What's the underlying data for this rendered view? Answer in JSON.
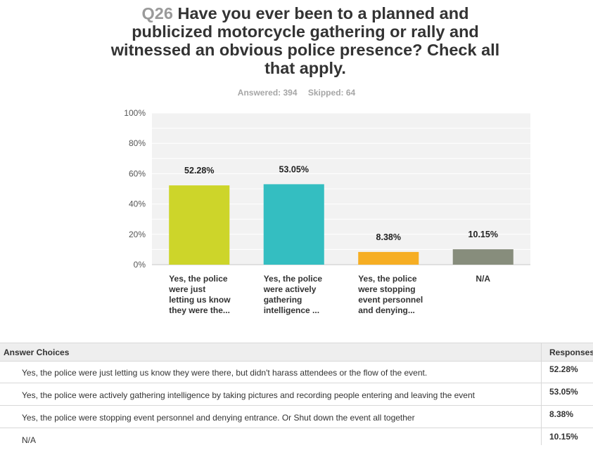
{
  "question": {
    "number": "Q26",
    "text": "Have you ever been to a planned and publicized motorcycle gathering or rally and witnessed an obvious police presence? Check all that apply."
  },
  "stats": {
    "answered": "Answered: 394",
    "skipped": "Skipped: 64"
  },
  "chart_data": {
    "type": "bar",
    "title": "",
    "xlabel": "",
    "ylabel": "",
    "ylim": [
      0,
      100
    ],
    "yticks": [
      "0%",
      "20%",
      "40%",
      "60%",
      "80%",
      "100%"
    ],
    "grid": true,
    "categories": [
      [
        "Yes, the police",
        "were just",
        "letting us know",
        "they were the..."
      ],
      [
        "Yes, the police",
        "were actively",
        "gathering",
        "intelligence ..."
      ],
      [
        "Yes, the police",
        "were stopping",
        "event personnel",
        "and denying..."
      ],
      [
        "N/A"
      ]
    ],
    "values": [
      52.28,
      53.05,
      8.38,
      10.15
    ],
    "data_labels": [
      "52.28%",
      "53.05%",
      "8.38%",
      "10.15%"
    ],
    "colors": [
      "#cdd52a",
      "#34bec1",
      "#f6ae23",
      "#878d7c"
    ]
  },
  "table": {
    "header_choices": "Answer Choices",
    "header_responses": "Responses",
    "rows": [
      {
        "choice": "Yes, the police were just letting us know they were there, but didn't harass attendees or the flow of the event.",
        "response": "52.28%"
      },
      {
        "choice": "Yes, the police were actively gathering intelligence by taking pictures and recording people entering and leaving the event",
        "response": "53.05%"
      },
      {
        "choice": "Yes, the police were stopping event personnel and denying entrance. Or Shut down the event all together",
        "response": "8.38%"
      },
      {
        "choice": "N/A",
        "response": "10.15%"
      }
    ]
  }
}
